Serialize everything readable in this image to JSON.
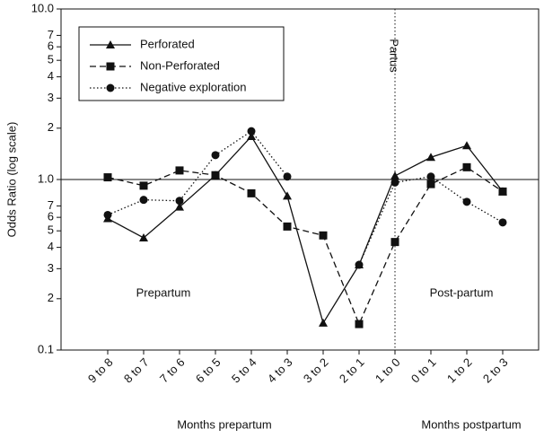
{
  "chart_data": {
    "type": "line",
    "log_scale": true,
    "y_label": "Odds Ratio (log scale)",
    "x_labels": [
      "Months prepartum",
      "Months postpartum"
    ],
    "annotations": [
      "Prepartum",
      "Post-partum",
      "Partus"
    ],
    "hline": 1,
    "vline": "1 to 0",
    "categories": [
      "9 to 8",
      "8 to 7",
      "7 to 6",
      "6 to 5",
      "5 to 4",
      "4 to 3",
      "3 to 2",
      "2 to 1",
      "1 to 0",
      "0 to 1",
      "1 to 2",
      "2 to 3"
    ],
    "series": [
      {
        "name": "Perforated",
        "color": "#111111",
        "dash": "solid",
        "marker": "triangle",
        "values": [
          0.59,
          0.455,
          0.69,
          1.06,
          1.79,
          0.8,
          0.144,
          0.316,
          1.05,
          1.35,
          1.58,
          0.85
        ]
      },
      {
        "name": "Non-Perforated",
        "color": "#111111",
        "dash": "dashed",
        "marker": "square",
        "values": [
          1.03,
          0.92,
          1.13,
          1.06,
          0.83,
          0.53,
          0.47,
          0.142,
          0.43,
          0.94,
          1.18,
          0.85
        ]
      },
      {
        "name": "Negative exploration",
        "color": "#111111",
        "dash": "dotted",
        "marker": "circle",
        "values": [
          0.62,
          0.76,
          0.75,
          1.39,
          1.92,
          1.04,
          null,
          0.316,
          0.96,
          1.04,
          0.74,
          0.56
        ]
      }
    ],
    "ylim": [
      0.1,
      10
    ],
    "yticks": [
      0.1,
      {
        "value": 0.2,
        "label": "2"
      },
      {
        "value": 0.3,
        "label": "3"
      },
      {
        "value": 0.4,
        "label": "4"
      },
      {
        "value": 0.5,
        "label": "5"
      },
      {
        "value": 0.6,
        "label": "6"
      },
      {
        "value": 0.7,
        "label": "7"
      },
      {
        "value": 1,
        "label": "1.0"
      },
      2,
      3,
      4,
      5,
      6,
      7,
      {
        "value": 10,
        "label": "10.0"
      }
    ],
    "legend": "upper left"
  }
}
